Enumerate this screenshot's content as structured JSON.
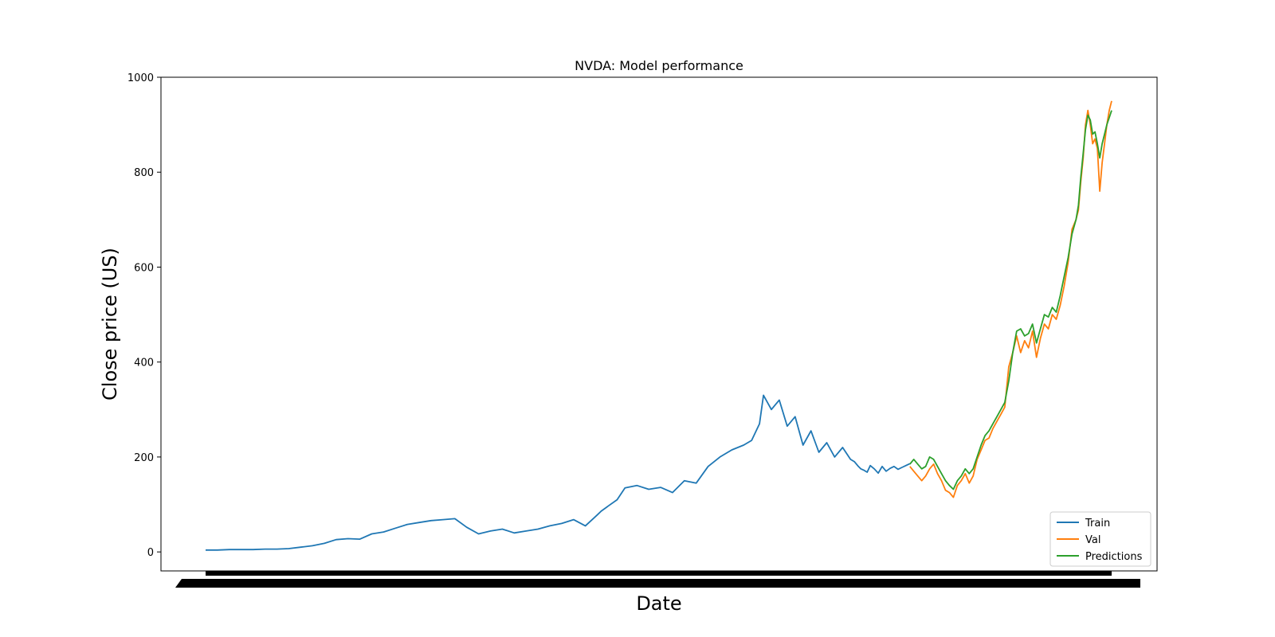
{
  "chart_data": {
    "type": "line",
    "title": "NVDA: Model performance",
    "xlabel": "Date",
    "ylabel": "Close price (US)",
    "ylim": [
      -40,
      1000
    ],
    "yticks": [
      0,
      200,
      400,
      600,
      800,
      1000
    ],
    "grid": false,
    "legend_placement": "lower-right",
    "colors": {
      "Train": "#1f77b4",
      "Val": "#ff7f0e",
      "Predictions": "#2ca02c"
    },
    "series": [
      {
        "name": "Train",
        "x": [
          0,
          15,
          30,
          45,
          60,
          75,
          90,
          105,
          120,
          135,
          150,
          165,
          180,
          195,
          210,
          225,
          240,
          255,
          270,
          285,
          300,
          315,
          330,
          345,
          360,
          375,
          390,
          405,
          420,
          435,
          450,
          465,
          480,
          495,
          500,
          510,
          520,
          530,
          545,
          560,
          575,
          590,
          605,
          620,
          635,
          650,
          665,
          680,
          690,
          700,
          705,
          715,
          725,
          735,
          745,
          755,
          765,
          775,
          785,
          795,
          805,
          815,
          820,
          825,
          828,
          832,
          836,
          840,
          845,
          850,
          855,
          860,
          865,
          870,
          875,
          880,
          885,
          890
        ],
        "values": [
          4,
          4,
          5,
          5,
          5,
          6,
          6,
          7,
          10,
          13,
          18,
          26,
          28,
          27,
          38,
          42,
          50,
          58,
          62,
          66,
          68,
          70,
          52,
          38,
          44,
          48,
          40,
          44,
          48,
          55,
          60,
          68,
          55,
          78,
          86,
          98,
          110,
          135,
          140,
          132,
          136,
          125,
          150,
          145,
          180,
          200,
          215,
          225,
          235,
          270,
          330,
          300,
          320,
          265,
          285,
          225,
          255,
          210,
          230,
          200,
          220,
          195,
          190,
          180,
          175,
          172,
          168,
          182,
          175,
          166,
          180,
          170,
          176,
          180,
          174,
          178,
          182,
          186
        ]
      },
      {
        "name": "Val",
        "x": [
          890,
          895,
          900,
          905,
          910,
          915,
          920,
          925,
          930,
          935,
          940,
          945,
          950,
          955,
          960,
          965,
          970,
          975,
          980,
          985,
          990,
          995,
          1000,
          1005,
          1010,
          1015,
          1020,
          1025,
          1030,
          1035,
          1040,
          1045,
          1050,
          1055,
          1060,
          1065,
          1070,
          1075,
          1080,
          1085,
          1090,
          1095,
          1100,
          1103,
          1106,
          1109,
          1112,
          1115,
          1118,
          1121,
          1124,
          1127,
          1130,
          1133,
          1136,
          1139,
          1142,
          1145
        ],
        "values": [
          180,
          170,
          160,
          150,
          160,
          175,
          185,
          165,
          150,
          130,
          125,
          115,
          140,
          150,
          165,
          145,
          160,
          195,
          215,
          235,
          240,
          260,
          275,
          290,
          305,
          390,
          420,
          455,
          420,
          445,
          430,
          465,
          410,
          450,
          480,
          470,
          500,
          490,
          520,
          560,
          610,
          680,
          700,
          720,
          780,
          830,
          900,
          930,
          900,
          860,
          870,
          850,
          760,
          820,
          860,
          900,
          930,
          950
        ]
      },
      {
        "name": "Predictions",
        "x": [
          890,
          895,
          900,
          905,
          910,
          915,
          920,
          925,
          930,
          935,
          940,
          945,
          950,
          955,
          960,
          965,
          970,
          975,
          980,
          985,
          990,
          995,
          1000,
          1005,
          1010,
          1015,
          1020,
          1025,
          1030,
          1035,
          1040,
          1045,
          1050,
          1055,
          1060,
          1065,
          1070,
          1075,
          1080,
          1085,
          1090,
          1095,
          1100,
          1103,
          1106,
          1109,
          1112,
          1115,
          1118,
          1121,
          1124,
          1127,
          1130,
          1133,
          1136,
          1139,
          1142,
          1145
        ],
        "values": [
          185,
          195,
          185,
          175,
          180,
          200,
          195,
          180,
          165,
          150,
          140,
          132,
          150,
          160,
          175,
          165,
          175,
          200,
          225,
          245,
          255,
          270,
          285,
          300,
          315,
          360,
          420,
          465,
          470,
          455,
          460,
          480,
          440,
          470,
          500,
          495,
          515,
          505,
          540,
          580,
          620,
          670,
          700,
          730,
          790,
          840,
          890,
          920,
          910,
          880,
          885,
          860,
          830,
          860,
          880,
          900,
          915,
          930
        ]
      }
    ]
  }
}
